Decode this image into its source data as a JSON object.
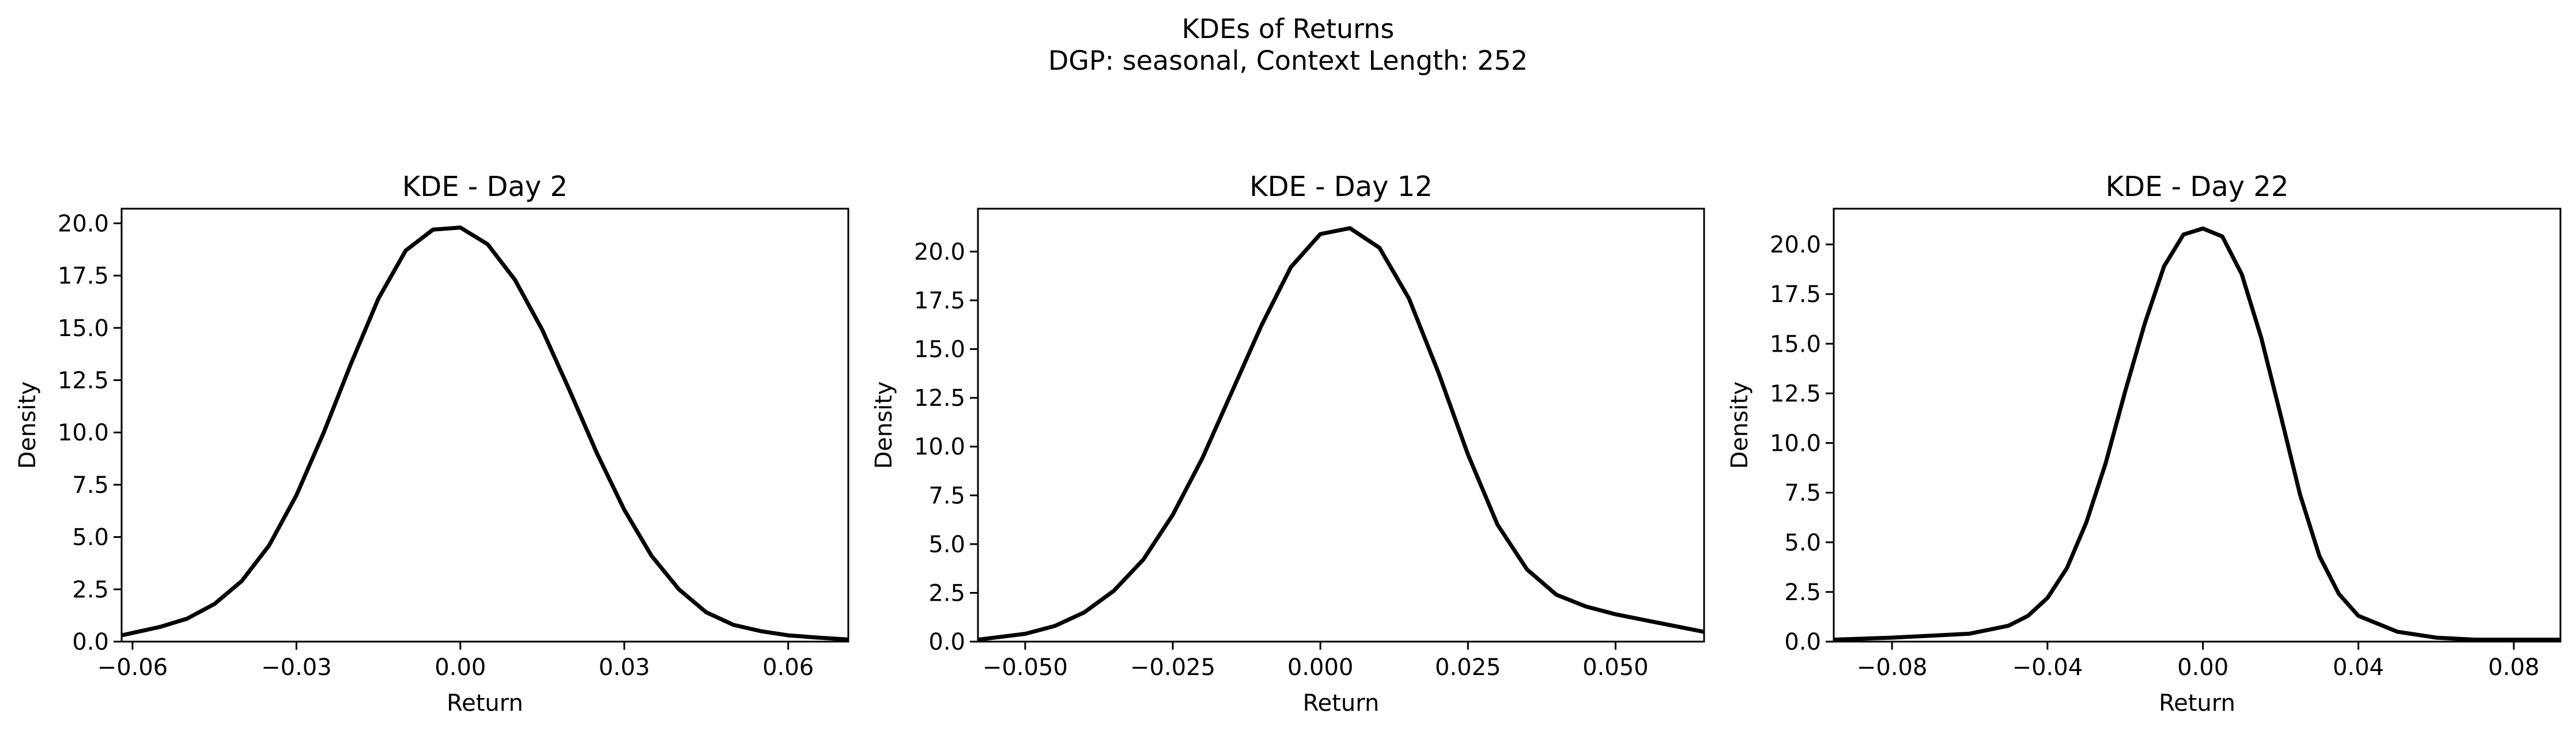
{
  "figure": {
    "title_line1": "KDEs of Returns",
    "title_line2": "DGP: seasonal, Context Length: 252"
  },
  "colors": {
    "line": "#000000",
    "background": "#ffffff"
  },
  "chart_data": [
    {
      "type": "line",
      "title": "KDE - Day 2",
      "xlabel": "Return",
      "ylabel": "Density",
      "xlim": [
        -0.062,
        0.071
      ],
      "ylim": [
        0,
        20.7
      ],
      "xticks": [
        -0.06,
        -0.03,
        0.0,
        0.03,
        0.06
      ],
      "xtick_labels": [
        "−0.06",
        "−0.03",
        "0.00",
        "0.03",
        "0.06"
      ],
      "yticks": [
        0.0,
        2.5,
        5.0,
        7.5,
        10.0,
        12.5,
        15.0,
        17.5,
        20.0
      ],
      "ytick_labels": [
        "0.0",
        "2.5",
        "5.0",
        "7.5",
        "10.0",
        "12.5",
        "15.0",
        "17.5",
        "20.0"
      ],
      "grid": false,
      "series": [
        {
          "x": [
            -0.062,
            -0.055,
            -0.05,
            -0.045,
            -0.04,
            -0.035,
            -0.03,
            -0.025,
            -0.02,
            -0.015,
            -0.01,
            -0.005,
            0.0,
            0.005,
            0.01,
            0.015,
            0.02,
            0.025,
            0.03,
            0.035,
            0.04,
            0.045,
            0.05,
            0.055,
            0.06,
            0.065,
            0.071
          ],
          "y": [
            0.3,
            0.7,
            1.1,
            1.8,
            2.9,
            4.6,
            7.0,
            10.0,
            13.3,
            16.4,
            18.7,
            19.7,
            19.8,
            19.0,
            17.3,
            14.9,
            12.0,
            9.0,
            6.3,
            4.1,
            2.5,
            1.4,
            0.8,
            0.5,
            0.3,
            0.2,
            0.1
          ]
        }
      ]
    },
    {
      "type": "line",
      "title": "KDE - Day 12",
      "xlabel": "Return",
      "ylabel": "Density",
      "xlim": [
        -0.058,
        0.065
      ],
      "ylim": [
        0,
        22.2
      ],
      "xticks": [
        -0.05,
        -0.025,
        0.0,
        0.025,
        0.05
      ],
      "xtick_labels": [
        "−0.050",
        "−0.025",
        "0.000",
        "0.025",
        "0.050"
      ],
      "yticks": [
        0.0,
        2.5,
        5.0,
        7.5,
        10.0,
        12.5,
        15.0,
        17.5,
        20.0
      ],
      "ytick_labels": [
        "0.0",
        "2.5",
        "5.0",
        "7.5",
        "10.0",
        "12.5",
        "15.0",
        "17.5",
        "20.0"
      ],
      "grid": false,
      "series": [
        {
          "x": [
            -0.058,
            -0.05,
            -0.045,
            -0.04,
            -0.035,
            -0.03,
            -0.025,
            -0.02,
            -0.015,
            -0.01,
            -0.005,
            0.0,
            0.005,
            0.01,
            0.015,
            0.02,
            0.025,
            0.03,
            0.035,
            0.04,
            0.045,
            0.05,
            0.055,
            0.06,
            0.065
          ],
          "y": [
            0.1,
            0.4,
            0.8,
            1.5,
            2.6,
            4.2,
            6.5,
            9.4,
            12.8,
            16.2,
            19.2,
            20.9,
            21.2,
            20.2,
            17.6,
            13.8,
            9.6,
            6.0,
            3.7,
            2.4,
            1.8,
            1.4,
            1.1,
            0.8,
            0.5
          ]
        }
      ]
    },
    {
      "type": "line",
      "title": "KDE - Day 22",
      "xlabel": "Return",
      "ylabel": "Density",
      "xlim": [
        -0.095,
        0.092
      ],
      "ylim": [
        0,
        21.8
      ],
      "xticks": [
        -0.08,
        -0.04,
        0.0,
        0.04,
        0.08
      ],
      "xtick_labels": [
        "−0.08",
        "−0.04",
        "0.00",
        "0.04",
        "0.08"
      ],
      "yticks": [
        0.0,
        2.5,
        5.0,
        7.5,
        10.0,
        12.5,
        15.0,
        17.5,
        20.0
      ],
      "ytick_labels": [
        "0.0",
        "2.5",
        "5.0",
        "7.5",
        "10.0",
        "12.5",
        "15.0",
        "17.5",
        "20.0"
      ],
      "grid": false,
      "series": [
        {
          "x": [
            -0.095,
            -0.08,
            -0.07,
            -0.06,
            -0.05,
            -0.045,
            -0.04,
            -0.035,
            -0.03,
            -0.025,
            -0.02,
            -0.015,
            -0.01,
            -0.005,
            0.0,
            0.005,
            0.01,
            0.015,
            0.02,
            0.025,
            0.03,
            0.035,
            0.04,
            0.05,
            0.06,
            0.07,
            0.08,
            0.092
          ],
          "y": [
            0.1,
            0.2,
            0.3,
            0.4,
            0.8,
            1.3,
            2.2,
            3.7,
            6.0,
            9.0,
            12.6,
            16.0,
            18.9,
            20.5,
            20.8,
            20.4,
            18.5,
            15.3,
            11.4,
            7.4,
            4.3,
            2.4,
            1.3,
            0.5,
            0.2,
            0.1,
            0.1,
            0.1
          ]
        }
      ]
    }
  ]
}
